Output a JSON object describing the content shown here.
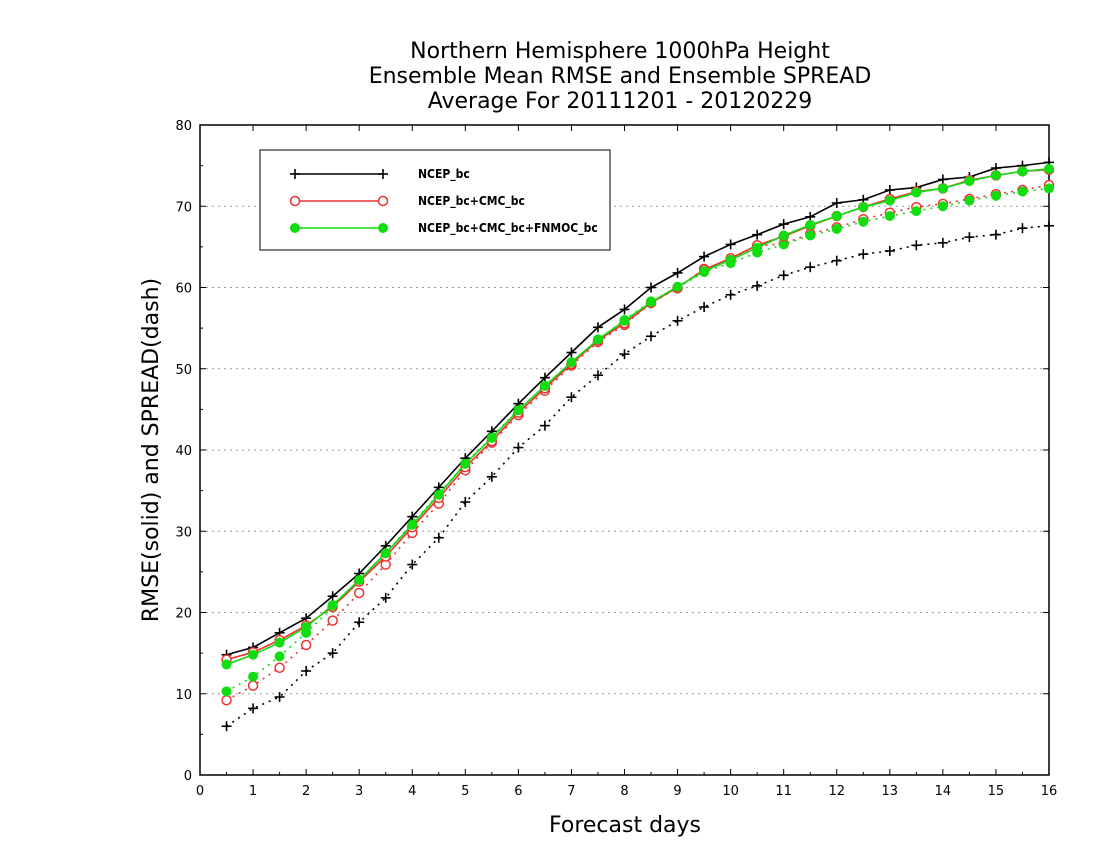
{
  "chart_data": {
    "type": "line",
    "title": [
      "Northern Hemisphere 1000hPa Height",
      "Ensemble Mean RMSE and Ensemble SPREAD",
      "Average For 20111201 - 20120229"
    ],
    "xlabel": "Forecast days",
    "ylabel": "RMSE(solid) and SPREAD(dash)",
    "xlim": [
      0,
      16
    ],
    "ylim": [
      0,
      80
    ],
    "xticks": [
      "0",
      "1",
      "2",
      "3",
      "4",
      "5",
      "6",
      "7",
      "8",
      "9",
      "10",
      "11",
      "12",
      "13",
      "14",
      "15",
      "16"
    ],
    "yticks": [
      "0",
      "10",
      "20",
      "30",
      "40",
      "50",
      "60",
      "70",
      "80"
    ],
    "grid": "horizontal dotted",
    "legend_position": "top-left",
    "x": [
      0.5,
      1,
      1.5,
      2,
      2.5,
      3,
      3.5,
      4,
      4.5,
      5,
      5.5,
      6,
      6.5,
      7,
      7.5,
      8,
      8.5,
      9,
      9.5,
      10,
      10.5,
      11,
      11.5,
      12,
      12.5,
      13,
      13.5,
      14,
      14.5,
      15,
      15.5,
      16
    ],
    "series": [
      {
        "name": "NCEP_bc",
        "metric": "RMSE",
        "style": "solid",
        "marker": "plus",
        "color": "#000000",
        "values": [
          14.8,
          15.7,
          17.5,
          19.3,
          22.0,
          24.8,
          28.2,
          31.8,
          35.4,
          39.0,
          42.3,
          45.7,
          48.9,
          52.0,
          55.1,
          57.3,
          60.0,
          61.8,
          63.8,
          65.3,
          66.5,
          67.8,
          68.7,
          70.4,
          70.8,
          72.0,
          72.3,
          73.3,
          73.6,
          74.7,
          75.0,
          75.4
        ]
      },
      {
        "name": "NCEP_bc+CMC_bc",
        "metric": "RMSE",
        "style": "solid",
        "marker": "open-circle",
        "color": "#ee3333",
        "values": [
          14.2,
          15.1,
          16.6,
          18.4,
          20.7,
          23.8,
          26.9,
          30.5,
          34.1,
          37.9,
          41.1,
          44.6,
          47.6,
          50.6,
          53.5,
          55.6,
          58.1,
          60.0,
          62.2,
          63.6,
          65.2,
          66.3,
          67.6,
          68.8,
          69.9,
          70.9,
          71.8,
          72.2,
          73.2,
          73.8,
          74.3,
          74.5
        ]
      },
      {
        "name": "NCEP_bc+CMC_bc+FNMOC_bc",
        "metric": "RMSE",
        "style": "solid",
        "marker": "filled-circle",
        "color": "#11dd11",
        "values": [
          13.6,
          14.8,
          16.3,
          18.2,
          20.9,
          24.0,
          27.3,
          30.8,
          34.5,
          38.3,
          41.5,
          44.9,
          47.9,
          50.8,
          53.6,
          55.9,
          58.2,
          60.1,
          62.0,
          63.4,
          64.9,
          66.4,
          67.7,
          68.8,
          69.9,
          70.7,
          71.7,
          72.2,
          73.1,
          73.8,
          74.3,
          74.6
        ]
      },
      {
        "name": "NCEP_bc",
        "metric": "SPREAD",
        "style": "dash",
        "marker": "plus",
        "color": "#000000",
        "values": [
          6.0,
          8.2,
          9.6,
          12.8,
          15.0,
          18.8,
          21.8,
          25.9,
          29.2,
          33.6,
          36.7,
          40.3,
          43.0,
          46.5,
          49.2,
          51.8,
          54.0,
          55.9,
          57.6,
          59.1,
          60.2,
          61.5,
          62.5,
          63.3,
          64.1,
          64.5,
          65.2,
          65.5,
          66.2,
          66.5,
          67.3,
          67.6
        ]
      },
      {
        "name": "NCEP_bc+CMC_bc",
        "metric": "SPREAD",
        "style": "dash",
        "marker": "open-circle",
        "color": "#ee3333",
        "values": [
          9.2,
          11.0,
          13.2,
          16.0,
          19.0,
          22.4,
          25.9,
          29.8,
          33.4,
          37.5,
          40.9,
          44.3,
          47.3,
          50.4,
          53.3,
          55.4,
          58.1,
          59.9,
          62.3,
          63.4,
          65.1,
          65.4,
          66.6,
          67.4,
          68.4,
          69.2,
          69.9,
          70.3,
          70.9,
          71.5,
          72.0,
          72.6
        ]
      },
      {
        "name": "NCEP_bc+CMC_bc+FNMOC_bc",
        "metric": "SPREAD",
        "style": "dash",
        "marker": "filled-circle",
        "color": "#11dd11",
        "values": [
          10.3,
          12.1,
          14.6,
          17.5,
          20.6,
          24.0,
          27.3,
          31.0,
          34.6,
          38.4,
          41.6,
          45.0,
          47.8,
          50.7,
          53.6,
          56.0,
          58.3,
          60.0,
          61.9,
          63.0,
          64.3,
          65.3,
          66.4,
          67.2,
          68.1,
          68.8,
          69.4,
          70.0,
          70.7,
          71.3,
          71.8,
          72.2
        ]
      }
    ]
  }
}
